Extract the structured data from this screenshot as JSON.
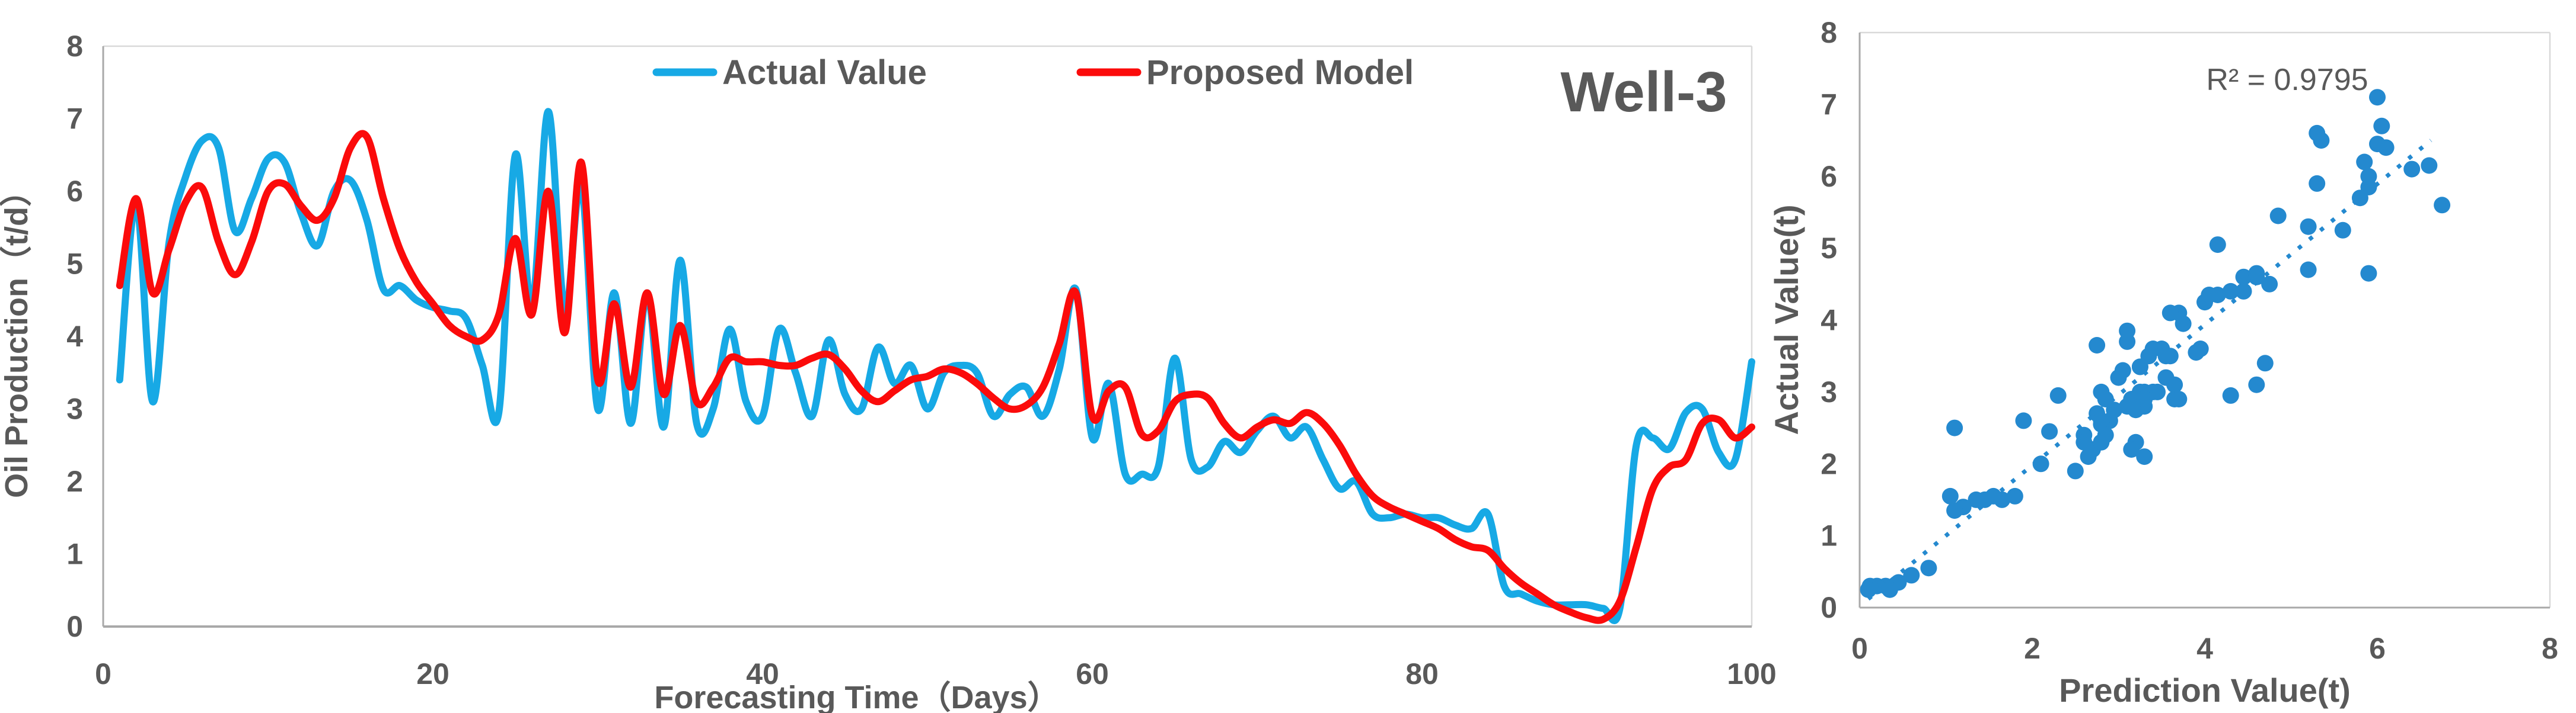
{
  "figure": {
    "background": "#ffffff",
    "text_color": "#595959",
    "axis_color": "#a9a9a9",
    "border_color": "#d9d9d9"
  },
  "chart_data": [
    {
      "type": "line",
      "annotation": "Well-3",
      "annotation_color": "#ff0000",
      "x_label": "Forecasting Time（Days）",
      "y_label": "Oil Production（t/d）",
      "xlim": [
        0,
        100
      ],
      "ylim": [
        0,
        8
      ],
      "x_ticks": [
        "0",
        "20",
        "40",
        "60",
        "80",
        "100"
      ],
      "y_ticks": [
        "0",
        "1",
        "2",
        "3",
        "4",
        "5",
        "6",
        "7",
        "8"
      ],
      "grid": false,
      "legend_position": "top-center",
      "x_start_day": 1,
      "series": [
        {
          "name": "Actual Value",
          "color": "#17a9e5",
          "values": [
            3.4,
            5.85,
            3.1,
            5.3,
            6.2,
            6.7,
            6.6,
            5.45,
            5.9,
            6.45,
            6.4,
            5.7,
            5.25,
            6.0,
            6.15,
            5.6,
            4.65,
            4.7,
            4.5,
            4.4,
            4.35,
            4.25,
            3.6,
            2.95,
            6.5,
            4.4,
            7.1,
            4.35,
            6.1,
            3.0,
            4.6,
            2.8,
            4.6,
            2.75,
            5.05,
            2.8,
            3.0,
            4.1,
            3.1,
            2.9,
            4.1,
            3.5,
            2.9,
            3.95,
            3.2,
            3.0,
            3.85,
            3.35,
            3.6,
            3.0,
            3.5,
            3.6,
            3.5,
            2.9,
            3.2,
            3.3,
            2.9,
            3.55,
            4.65,
            2.6,
            3.35,
            2.1,
            2.1,
            2.2,
            3.7,
            2.3,
            2.2,
            2.55,
            2.4,
            2.7,
            2.9,
            2.6,
            2.75,
            2.3,
            1.9,
            2.0,
            1.55,
            1.5,
            1.55,
            1.5,
            1.5,
            1.4,
            1.35,
            1.55,
            0.55,
            0.45,
            0.35,
            0.3,
            0.3,
            0.3,
            0.25,
            0.25,
            2.5,
            2.6,
            2.45,
            2.95,
            3.0,
            2.4,
            2.3,
            3.65
          ]
        },
        {
          "name": "Proposed Model",
          "color": "#fb0b0b",
          "values": [
            4.7,
            5.9,
            4.6,
            5.2,
            5.85,
            6.05,
            5.3,
            4.85,
            5.3,
            6.0,
            6.1,
            5.8,
            5.6,
            5.9,
            6.6,
            6.75,
            5.9,
            5.2,
            4.75,
            4.45,
            4.15,
            4.0,
            3.95,
            4.3,
            5.35,
            4.3,
            6.0,
            4.05,
            6.4,
            3.4,
            4.45,
            3.3,
            4.6,
            3.2,
            4.15,
            3.1,
            3.3,
            3.7,
            3.65,
            3.65,
            3.6,
            3.6,
            3.7,
            3.75,
            3.55,
            3.25,
            3.1,
            3.25,
            3.4,
            3.45,
            3.55,
            3.5,
            3.35,
            3.15,
            3.0,
            3.05,
            3.3,
            3.9,
            4.6,
            2.9,
            3.25,
            3.3,
            2.65,
            2.7,
            3.1,
            3.2,
            3.15,
            2.8,
            2.6,
            2.75,
            2.85,
            2.8,
            2.95,
            2.8,
            2.5,
            2.1,
            1.8,
            1.65,
            1.55,
            1.45,
            1.35,
            1.2,
            1.1,
            1.05,
            0.8,
            0.6,
            0.45,
            0.3,
            0.2,
            0.12,
            0.1,
            0.35,
            1.1,
            1.9,
            2.2,
            2.3,
            2.8,
            2.85,
            2.6,
            2.75
          ]
        }
      ]
    },
    {
      "type": "scatter",
      "annotation": "R² = 0.9795",
      "x_label": "Prediction Value(t)",
      "y_label": "Actual Value(t)",
      "xlim": [
        0,
        8
      ],
      "ylim": [
        0,
        8
      ],
      "x_ticks": [
        "0",
        "2",
        "4",
        "6",
        "8"
      ],
      "y_ticks": [
        "0",
        "1",
        "2",
        "3",
        "4",
        "5",
        "6",
        "7",
        "8"
      ],
      "grid": false,
      "point_color": "#2489cf",
      "trendline": {
        "style": "dotted",
        "color": "#2489cf",
        "from": [
          0.1,
          0.12
        ],
        "to": [
          6.62,
          6.5
        ]
      },
      "points": [
        [
          4.7,
          3.4
        ],
        [
          5.9,
          5.85
        ],
        [
          4.6,
          3.1
        ],
        [
          5.2,
          5.3
        ],
        [
          5.85,
          6.2
        ],
        [
          6.05,
          6.7
        ],
        [
          5.3,
          6.6
        ],
        [
          4.85,
          5.45
        ],
        [
          5.3,
          5.9
        ],
        [
          6.0,
          6.45
        ],
        [
          6.1,
          6.4
        ],
        [
          5.8,
          5.7
        ],
        [
          5.6,
          5.25
        ],
        [
          5.9,
          6.0
        ],
        [
          6.6,
          6.15
        ],
        [
          6.75,
          5.6
        ],
        [
          5.9,
          4.65
        ],
        [
          5.2,
          4.7
        ],
        [
          4.75,
          4.5
        ],
        [
          4.45,
          4.4
        ],
        [
          4.15,
          4.35
        ],
        [
          4.0,
          4.25
        ],
        [
          3.95,
          3.6
        ],
        [
          4.3,
          2.95
        ],
        [
          5.35,
          6.5
        ],
        [
          4.3,
          4.4
        ],
        [
          6.0,
          7.1
        ],
        [
          4.05,
          4.35
        ],
        [
          6.4,
          6.1
        ],
        [
          3.4,
          3.0
        ],
        [
          4.45,
          4.6
        ],
        [
          3.3,
          2.8
        ],
        [
          4.6,
          4.6
        ],
        [
          3.2,
          2.75
        ],
        [
          4.15,
          5.05
        ],
        [
          3.1,
          2.8
        ],
        [
          3.3,
          3.0
        ],
        [
          3.7,
          4.1
        ],
        [
          3.65,
          3.1
        ],
        [
          3.65,
          2.9
        ],
        [
          3.6,
          4.1
        ],
        [
          3.6,
          3.5
        ],
        [
          3.7,
          2.9
        ],
        [
          3.75,
          3.95
        ],
        [
          3.55,
          3.2
        ],
        [
          3.25,
          3.0
        ],
        [
          3.1,
          3.85
        ],
        [
          3.25,
          3.35
        ],
        [
          3.4,
          3.6
        ],
        [
          3.45,
          3.0
        ],
        [
          3.55,
          3.5
        ],
        [
          3.5,
          3.6
        ],
        [
          3.35,
          3.5
        ],
        [
          3.15,
          2.9
        ],
        [
          3.0,
          3.2
        ],
        [
          3.05,
          3.3
        ],
        [
          3.3,
          2.9
        ],
        [
          3.9,
          3.55
        ],
        [
          4.6,
          4.65
        ],
        [
          2.9,
          2.6
        ],
        [
          3.25,
          3.35
        ],
        [
          3.3,
          2.1
        ],
        [
          2.65,
          2.1
        ],
        [
          2.7,
          2.2
        ],
        [
          3.1,
          3.7
        ],
        [
          3.2,
          2.3
        ],
        [
          3.15,
          2.2
        ],
        [
          2.8,
          2.55
        ],
        [
          2.6,
          2.4
        ],
        [
          2.75,
          2.7
        ],
        [
          2.85,
          2.9
        ],
        [
          2.8,
          2.6
        ],
        [
          2.95,
          2.75
        ],
        [
          2.8,
          2.3
        ],
        [
          2.5,
          1.9
        ],
        [
          2.1,
          2.0
        ],
        [
          1.8,
          1.55
        ],
        [
          1.65,
          1.5
        ],
        [
          1.55,
          1.55
        ],
        [
          1.45,
          1.5
        ],
        [
          1.35,
          1.5
        ],
        [
          1.2,
          1.4
        ],
        [
          1.1,
          1.35
        ],
        [
          1.05,
          1.55
        ],
        [
          0.8,
          0.55
        ],
        [
          0.6,
          0.45
        ],
        [
          0.45,
          0.35
        ],
        [
          0.3,
          0.3
        ],
        [
          0.2,
          0.3
        ],
        [
          0.12,
          0.3
        ],
        [
          0.1,
          0.25
        ],
        [
          0.35,
          0.25
        ],
        [
          1.1,
          2.5
        ],
        [
          1.9,
          2.6
        ],
        [
          2.2,
          2.45
        ],
        [
          2.3,
          2.95
        ],
        [
          2.8,
          3.0
        ],
        [
          2.85,
          2.4
        ],
        [
          2.6,
          2.3
        ],
        [
          2.75,
          3.65
        ]
      ]
    }
  ]
}
